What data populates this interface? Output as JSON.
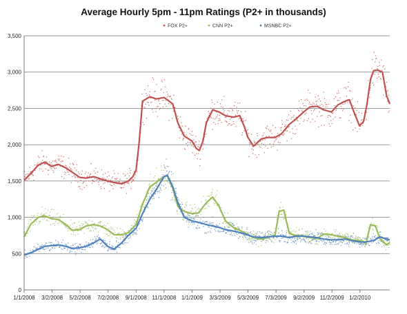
{
  "chart_data": {
    "type": "line",
    "title": "Average Hourly 5pm - 11pm Ratings (P2+ in thousands)",
    "xlabel": "",
    "ylabel": "",
    "ylim": [
      0,
      3500
    ],
    "yticks": [
      "0",
      "500",
      "1,000",
      "1,500",
      "2,000",
      "2,500",
      "3,000",
      "3,500"
    ],
    "yvalues": [
      0,
      500,
      1000,
      1500,
      2000,
      2500,
      3000,
      3500
    ],
    "xlim": [
      "2008-01-01",
      "2010-03-08"
    ],
    "xticks": [
      "1/1/2008",
      "3/2/2008",
      "5/2/2008",
      "7/2/2008",
      "9/1/2008",
      "11/1/2008",
      "1/1/2009",
      "3/3/2009",
      "5/3/2009",
      "7/3/2009",
      "9/2/2009",
      "11/2/2009",
      "1/2/2010"
    ],
    "xtick_dates": [
      "2008-01-01",
      "2008-03-02",
      "2008-05-02",
      "2008-07-02",
      "2008-09-01",
      "2008-11-01",
      "2009-01-01",
      "2009-03-03",
      "2009-05-03",
      "2009-07-03",
      "2009-09-02",
      "2009-11-02",
      "2010-01-02"
    ],
    "grid": true,
    "legend_position": "top",
    "series": [
      {
        "name": "FOX P2+",
        "color": "#c0504d",
        "markers": "daily points with smoothed trend line",
        "x": [
          "2008-01-01",
          "2008-01-15",
          "2008-02-01",
          "2008-02-15",
          "2008-03-01",
          "2008-03-15",
          "2008-04-01",
          "2008-04-15",
          "2008-05-01",
          "2008-05-15",
          "2008-06-01",
          "2008-06-15",
          "2008-07-01",
          "2008-07-15",
          "2008-08-01",
          "2008-08-15",
          "2008-08-25",
          "2008-09-01",
          "2008-09-08",
          "2008-09-15",
          "2008-10-01",
          "2008-10-15",
          "2008-11-01",
          "2008-11-08",
          "2008-11-20",
          "2008-12-01",
          "2008-12-15",
          "2009-01-01",
          "2009-01-10",
          "2009-01-17",
          "2009-01-25",
          "2009-02-01",
          "2009-02-15",
          "2009-03-01",
          "2009-03-15",
          "2009-04-01",
          "2009-04-15",
          "2009-04-25",
          "2009-05-03",
          "2009-05-15",
          "2009-06-01",
          "2009-06-15",
          "2009-07-01",
          "2009-07-15",
          "2009-08-01",
          "2009-08-15",
          "2009-09-01",
          "2009-09-15",
          "2009-10-01",
          "2009-10-15",
          "2009-11-01",
          "2009-11-15",
          "2009-12-01",
          "2009-12-10",
          "2009-12-20",
          "2010-01-01",
          "2010-01-10",
          "2010-01-17",
          "2010-01-25",
          "2010-02-01",
          "2010-02-10",
          "2010-02-20",
          "2010-03-01",
          "2010-03-08"
        ],
        "values": [
          1510,
          1600,
          1720,
          1760,
          1700,
          1730,
          1680,
          1620,
          1550,
          1540,
          1560,
          1530,
          1500,
          1480,
          1460,
          1500,
          1560,
          1650,
          2050,
          2600,
          2660,
          2630,
          2650,
          2620,
          2560,
          2300,
          2120,
          2050,
          1950,
          1920,
          2050,
          2300,
          2480,
          2450,
          2400,
          2380,
          2400,
          2250,
          2100,
          1980,
          2080,
          2100,
          2100,
          2150,
          2280,
          2350,
          2450,
          2520,
          2530,
          2480,
          2450,
          2550,
          2600,
          2620,
          2450,
          2260,
          2320,
          2550,
          2900,
          3020,
          3030,
          3000,
          2680,
          2560
        ]
      },
      {
        "name": "CNN P2+",
        "color": "#9bbb59",
        "markers": "daily points with smoothed trend line",
        "x": [
          "2008-01-01",
          "2008-01-15",
          "2008-02-01",
          "2008-02-15",
          "2008-03-01",
          "2008-03-15",
          "2008-04-01",
          "2008-04-15",
          "2008-05-01",
          "2008-05-15",
          "2008-06-01",
          "2008-06-15",
          "2008-07-01",
          "2008-07-15",
          "2008-08-01",
          "2008-08-15",
          "2008-09-01",
          "2008-09-15",
          "2008-10-01",
          "2008-10-15",
          "2008-11-01",
          "2008-11-08",
          "2008-11-20",
          "2008-12-01",
          "2008-12-15",
          "2009-01-01",
          "2009-01-15",
          "2009-02-01",
          "2009-02-15",
          "2009-03-01",
          "2009-03-15",
          "2009-04-01",
          "2009-04-15",
          "2009-05-01",
          "2009-05-15",
          "2009-06-01",
          "2009-06-15",
          "2009-07-01",
          "2009-07-10",
          "2009-07-20",
          "2009-08-01",
          "2009-08-15",
          "2009-09-01",
          "2009-09-15",
          "2009-10-01",
          "2009-10-15",
          "2009-11-01",
          "2009-11-15",
          "2009-12-01",
          "2009-12-15",
          "2010-01-01",
          "2010-01-15",
          "2010-01-25",
          "2010-02-05",
          "2010-02-15",
          "2010-03-01",
          "2010-03-08"
        ],
        "values": [
          730,
          900,
          1000,
          1020,
          980,
          970,
          900,
          820,
          830,
          880,
          900,
          880,
          830,
          760,
          760,
          790,
          900,
          1180,
          1420,
          1480,
          1560,
          1570,
          1400,
          1150,
          1080,
          1050,
          1060,
          1200,
          1280,
          1150,
          950,
          860,
          820,
          770,
          720,
          700,
          720,
          760,
          1080,
          1100,
          780,
          750,
          740,
          720,
          710,
          770,
          760,
          740,
          720,
          690,
          680,
          640,
          900,
          880,
          700,
          620,
          650
        ]
      },
      {
        "name": "MSNBC P2+",
        "color": "#4f81bd",
        "markers": "daily points with smoothed trend line",
        "x": [
          "2008-01-01",
          "2008-01-15",
          "2008-02-01",
          "2008-02-15",
          "2008-03-01",
          "2008-03-15",
          "2008-04-01",
          "2008-04-15",
          "2008-05-01",
          "2008-05-15",
          "2008-06-01",
          "2008-06-15",
          "2008-07-01",
          "2008-07-15",
          "2008-08-01",
          "2008-08-15",
          "2008-09-01",
          "2008-09-15",
          "2008-10-01",
          "2008-10-15",
          "2008-11-01",
          "2008-11-08",
          "2008-11-20",
          "2008-12-01",
          "2008-12-15",
          "2009-01-01",
          "2009-01-15",
          "2009-02-01",
          "2009-02-15",
          "2009-03-01",
          "2009-03-15",
          "2009-04-01",
          "2009-04-15",
          "2009-05-01",
          "2009-05-15",
          "2009-06-01",
          "2009-06-15",
          "2009-07-01",
          "2009-07-15",
          "2009-08-01",
          "2009-08-15",
          "2009-09-01",
          "2009-09-15",
          "2009-10-01",
          "2009-10-15",
          "2009-11-01",
          "2009-11-15",
          "2009-12-01",
          "2009-12-15",
          "2010-01-01",
          "2010-01-15",
          "2010-02-01",
          "2010-02-15",
          "2010-03-01",
          "2010-03-08"
        ],
        "values": [
          480,
          510,
          560,
          600,
          610,
          620,
          600,
          570,
          580,
          600,
          650,
          700,
          600,
          560,
          650,
          750,
          850,
          1050,
          1250,
          1380,
          1560,
          1580,
          1420,
          1200,
          1000,
          950,
          930,
          900,
          880,
          860,
          830,
          810,
          790,
          760,
          730,
          720,
          730,
          740,
          740,
          720,
          740,
          740,
          730,
          720,
          700,
          690,
          690,
          700,
          680,
          660,
          660,
          680,
          730,
          700,
          690
        ]
      }
    ]
  }
}
